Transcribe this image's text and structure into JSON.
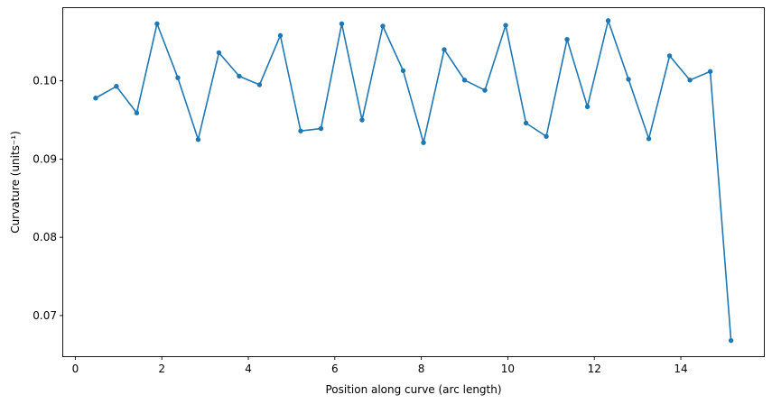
{
  "chart_data": {
    "type": "line",
    "title": "",
    "xlabel": "Position along curve (arc length)",
    "ylabel": "Curvature (units⁻¹)",
    "xlim": [
      -0.28,
      15.92
    ],
    "ylim": [
      0.0648,
      0.1093
    ],
    "xticks": [
      0,
      2,
      4,
      6,
      8,
      10,
      12,
      14
    ],
    "yticks": [
      0.07,
      0.08,
      0.09,
      0.1
    ],
    "ytick_labels": [
      "0.07",
      "0.08",
      "0.09",
      "0.10"
    ],
    "grid": false,
    "color": "#1f77b4",
    "series": [
      {
        "markers": true,
        "x": [
          0.47,
          0.95,
          1.42,
          1.89,
          2.37,
          2.84,
          3.32,
          3.79,
          4.26,
          4.74,
          5.21,
          5.68,
          6.16,
          6.63,
          7.11,
          7.58,
          8.05,
          8.53,
          9.0,
          9.47,
          9.95,
          10.42,
          10.89,
          11.37,
          11.84,
          12.32,
          12.79,
          13.26,
          13.74,
          14.21,
          14.68,
          15.16
        ],
        "y": [
          0.0978,
          0.0993,
          0.0959,
          0.1073,
          0.1004,
          0.0925,
          0.1036,
          0.1006,
          0.0995,
          0.1058,
          0.0936,
          0.0939,
          0.1073,
          0.095,
          0.107,
          0.1013,
          0.0921,
          0.104,
          0.1001,
          0.0988,
          0.1071,
          0.0946,
          0.0929,
          0.1053,
          0.0967,
          0.1077,
          0.1002,
          0.0926,
          0.1032,
          0.1001,
          0.1012,
          0.0668
        ]
      }
    ]
  }
}
